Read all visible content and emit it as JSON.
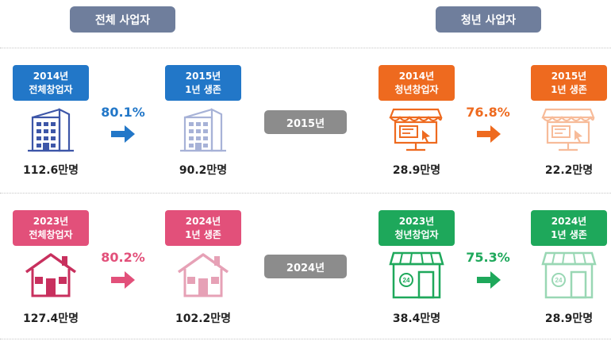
{
  "headers": {
    "left": "전체 사업자",
    "right": "청년 사업자"
  },
  "row1": {
    "year": "2015년",
    "all": {
      "start_tag": [
        "2014년",
        "전체창업자"
      ],
      "end_tag": [
        "2015년",
        "1년 생존"
      ],
      "start_count": "112.6만명",
      "end_count": "90.2만명",
      "rate": "80.1%"
    },
    "youth": {
      "start_tag": [
        "2014년",
        "청년창업자"
      ],
      "end_tag": [
        "2015년",
        "1년 생존"
      ],
      "start_count": "28.9만명",
      "end_count": "22.2만명",
      "rate": "76.8%"
    }
  },
  "row2": {
    "year": "2024년",
    "all": {
      "start_tag": [
        "2023년",
        "전체창업자"
      ],
      "end_tag": [
        "2024년",
        "1년 생존"
      ],
      "start_count": "127.4만명",
      "end_count": "102.2만명",
      "rate": "80.2%"
    },
    "youth": {
      "start_tag": [
        "2023년",
        "청년창업자"
      ],
      "end_tag": [
        "2024년",
        "1년 생존"
      ],
      "start_count": "38.4만명",
      "end_count": "28.9만명",
      "rate": "75.3%",
      "store_number": "24"
    }
  },
  "colors": {
    "header": "#6f7e9c",
    "blue": "#2277c8",
    "orange": "#ee6a1f",
    "pink": "#e2507a",
    "green": "#1ea85b",
    "year_pill": "#8c8c8c"
  },
  "icons": [
    "office-building-icon",
    "shop-kiosk-icon",
    "house-icon",
    "convenience-store-icon",
    "arrow-right-icon"
  ]
}
